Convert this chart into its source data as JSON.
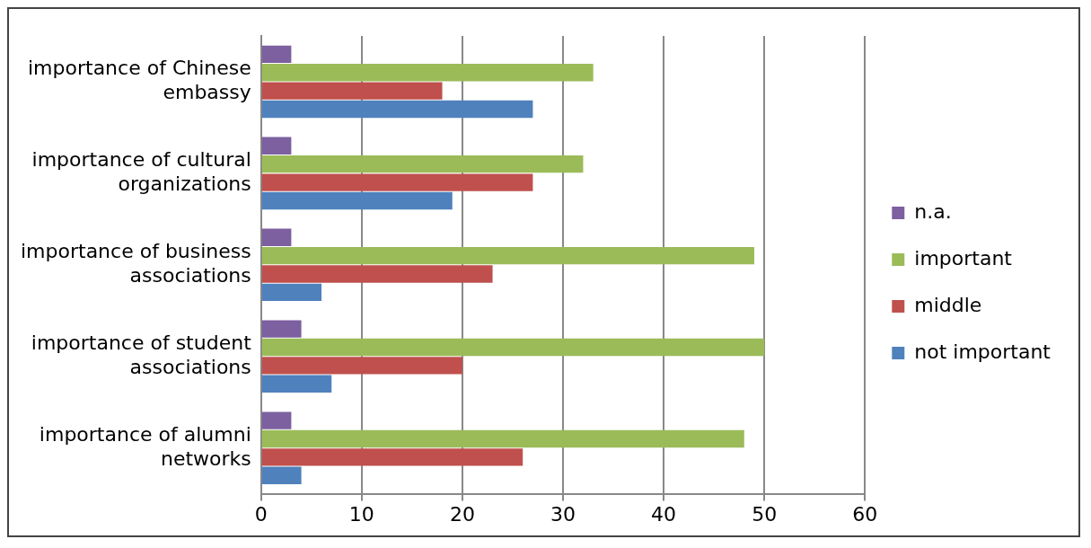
{
  "chart_data": {
    "type": "bar",
    "orientation": "horizontal",
    "categories": [
      "importance of Chinese embassy",
      "importance of cultural organizations",
      "importance of business associations",
      "importance of student associations",
      "importance of alumni networks"
    ],
    "series": [
      {
        "name": "n.a.",
        "color": "#7d60a0",
        "values": [
          3,
          3,
          3,
          4,
          3
        ]
      },
      {
        "name": "important",
        "color": "#9bbb59",
        "values": [
          33,
          32,
          49,
          50,
          48
        ]
      },
      {
        "name": "middle",
        "color": "#c0504d",
        "values": [
          18,
          27,
          23,
          20,
          26
        ]
      },
      {
        "name": "not important",
        "color": "#4f81bd",
        "values": [
          27,
          19,
          6,
          7,
          4
        ]
      }
    ],
    "xlim": [
      0,
      60
    ],
    "xticks": [
      0,
      10,
      20,
      30,
      40,
      50,
      60
    ],
    "grid": "x",
    "legend": "right"
  }
}
